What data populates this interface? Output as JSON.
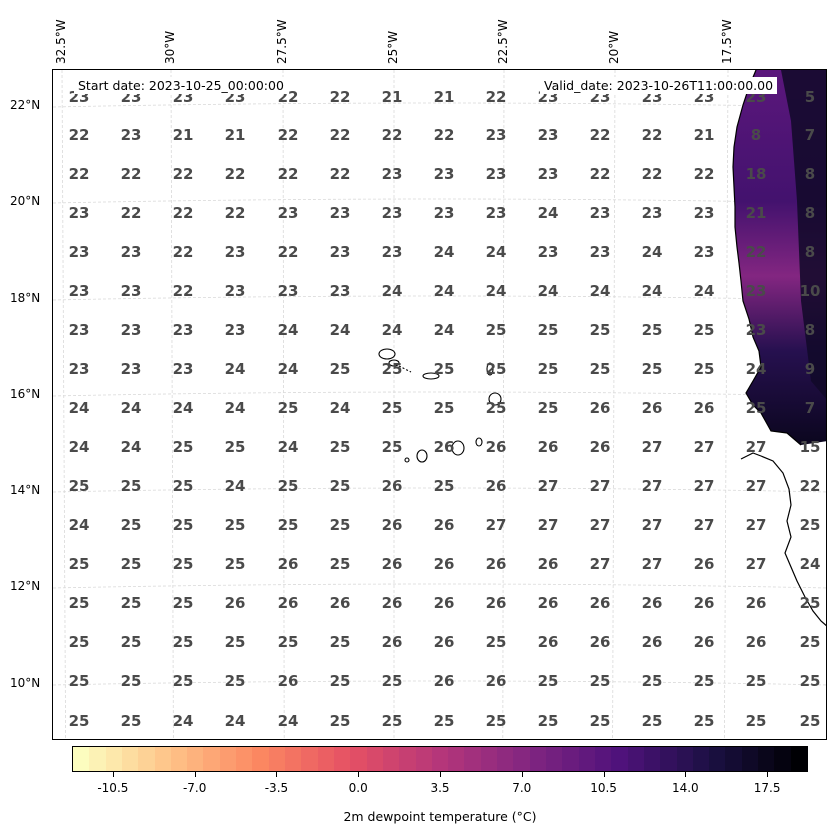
{
  "map": {
    "start_date_label": "Start date: 2023-10-25_00:00:00",
    "valid_date_label": "Valid_date: 2023-10-26T11:00:00.00",
    "lon_labels": [
      "32.5°W",
      "30°W",
      "27.5°W",
      "25°W",
      "22.5°W",
      "20°W",
      "17.5°W"
    ],
    "lat_labels": [
      "22°N",
      "20°N",
      "18°N",
      "16°N",
      "14°N",
      "12°N",
      "10°N"
    ],
    "grid_values": [
      [
        "23",
        "23",
        "23",
        "23",
        "22",
        "22",
        "21",
        "21",
        "22",
        "23",
        "23",
        "23",
        "23",
        "23",
        "5"
      ],
      [
        "22",
        "23",
        "21",
        "21",
        "22",
        "22",
        "22",
        "22",
        "23",
        "23",
        "22",
        "22",
        "21",
        "8",
        "7"
      ],
      [
        "22",
        "22",
        "22",
        "22",
        "22",
        "22",
        "23",
        "23",
        "23",
        "23",
        "22",
        "22",
        "22",
        "18",
        "8"
      ],
      [
        "23",
        "22",
        "22",
        "22",
        "23",
        "23",
        "23",
        "23",
        "23",
        "24",
        "23",
        "23",
        "23",
        "21",
        "8"
      ],
      [
        "23",
        "23",
        "22",
        "23",
        "22",
        "23",
        "23",
        "24",
        "24",
        "23",
        "23",
        "24",
        "23",
        "22",
        "8"
      ],
      [
        "23",
        "23",
        "22",
        "23",
        "23",
        "23",
        "24",
        "24",
        "24",
        "24",
        "24",
        "24",
        "24",
        "23",
        "10"
      ],
      [
        "23",
        "23",
        "23",
        "23",
        "24",
        "24",
        "24",
        "24",
        "25",
        "25",
        "25",
        "25",
        "25",
        "23",
        "8"
      ],
      [
        "23",
        "23",
        "23",
        "24",
        "24",
        "25",
        "25",
        "25",
        "25",
        "25",
        "25",
        "25",
        "25",
        "24",
        "9"
      ],
      [
        "24",
        "24",
        "24",
        "24",
        "25",
        "24",
        "25",
        "25",
        "25",
        "25",
        "26",
        "26",
        "26",
        "25",
        "7"
      ],
      [
        "24",
        "24",
        "25",
        "25",
        "24",
        "25",
        "25",
        "26",
        "26",
        "26",
        "26",
        "27",
        "27",
        "27",
        "15"
      ],
      [
        "25",
        "25",
        "25",
        "24",
        "25",
        "25",
        "26",
        "25",
        "26",
        "27",
        "27",
        "27",
        "27",
        "27",
        "22"
      ],
      [
        "24",
        "25",
        "25",
        "25",
        "25",
        "25",
        "26",
        "26",
        "27",
        "27",
        "27",
        "27",
        "27",
        "27",
        "25"
      ],
      [
        "25",
        "25",
        "25",
        "25",
        "26",
        "25",
        "26",
        "26",
        "26",
        "26",
        "27",
        "27",
        "26",
        "27",
        "24"
      ],
      [
        "25",
        "25",
        "25",
        "26",
        "26",
        "26",
        "26",
        "26",
        "26",
        "26",
        "26",
        "26",
        "26",
        "26",
        "25"
      ],
      [
        "25",
        "25",
        "25",
        "25",
        "25",
        "25",
        "26",
        "26",
        "25",
        "26",
        "26",
        "26",
        "26",
        "26",
        "25"
      ],
      [
        "25",
        "25",
        "25",
        "25",
        "26",
        "25",
        "25",
        "26",
        "26",
        "25",
        "25",
        "25",
        "25",
        "25",
        "25"
      ],
      [
        "25",
        "25",
        "24",
        "24",
        "24",
        "25",
        "25",
        "25",
        "25",
        "25",
        "25",
        "25",
        "25",
        "25",
        "25"
      ]
    ]
  },
  "colorbar": {
    "title": "2m dewpoint temperature ($^\\circ$C)",
    "title_display": "2m dewpoint temperature (°C)",
    "ticks": [
      "-10.5",
      "-7.0",
      "-3.5",
      "0.0",
      "3.5",
      "7.0",
      "10.5",
      "14.0",
      "17.5"
    ],
    "range": [
      -12.25,
      19.25
    ],
    "colormap": "magma_r"
  }
}
